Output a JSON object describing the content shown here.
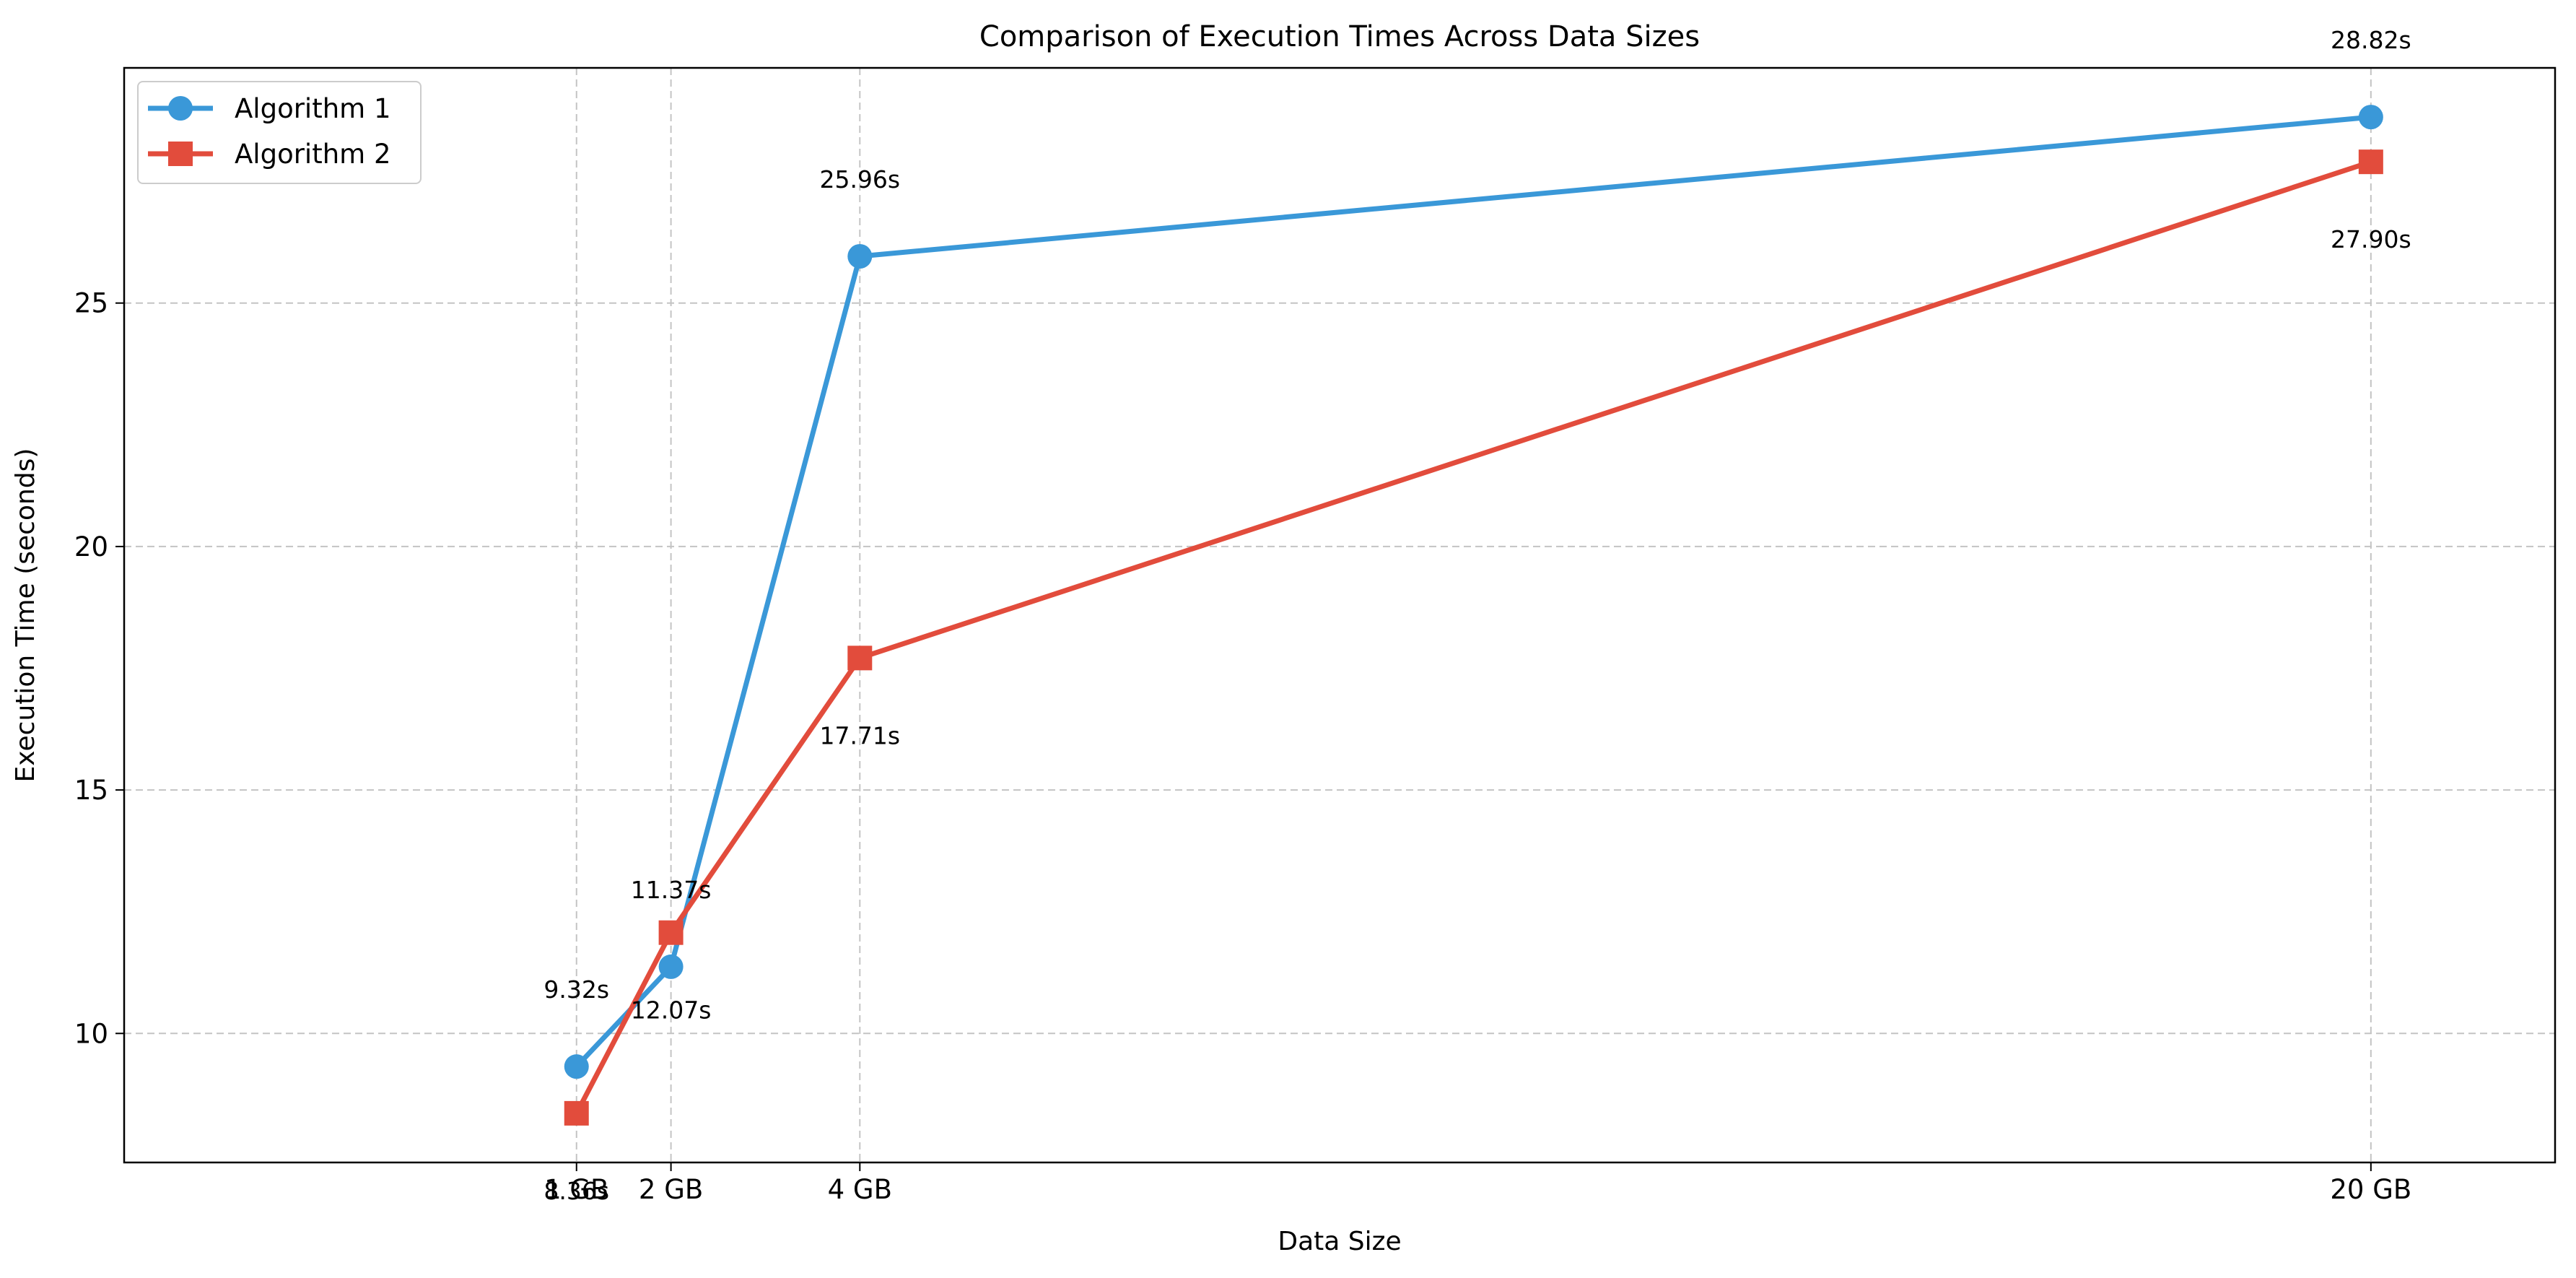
{
  "chart_data": {
    "type": "line",
    "title": "Comparison of Execution Times Across Data Sizes",
    "xlabel": "Data Size",
    "ylabel": "Execution Time (seconds)",
    "x_scale": "linear",
    "x": [
      1,
      2,
      4,
      20
    ],
    "categories": [
      "1 GB",
      "2 GB",
      "4 GB",
      "20 GB"
    ],
    "xlim": [
      -3.79,
      21.95
    ],
    "ylim": [
      7.35,
      29.83
    ],
    "yticks": [
      10,
      15,
      20,
      25
    ],
    "ytick_labels": [
      "10",
      "15",
      "20",
      "25"
    ],
    "grid": true,
    "legend_position": "upper left",
    "series": [
      {
        "name": "Algorithm 1",
        "values": [
          9.32,
          11.37,
          25.96,
          28.82
        ],
        "labels": [
          "9.32s",
          "11.37s",
          "25.96s",
          "28.82s"
        ],
        "color": "#3a98d8",
        "marker": "circle"
      },
      {
        "name": "Algorithm 2",
        "values": [
          8.36,
          12.07,
          17.71,
          27.9
        ],
        "labels": [
          "8.36s",
          "12.07s",
          "17.71s",
          "27.90s"
        ],
        "color": "#e24c3c",
        "marker": "square"
      }
    ]
  }
}
